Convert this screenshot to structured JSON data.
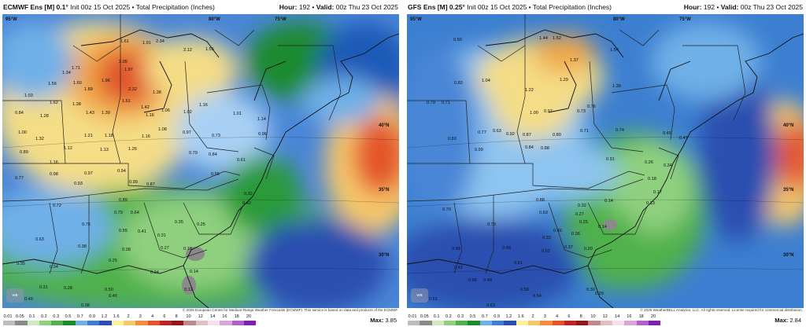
{
  "left": {
    "title_bold": "ECMWF Ens [M] 0.1°",
    "title_rest": "Init 00z 15 Oct 2025 • Total Precipitation (Inches)",
    "hour_label": "Hour:",
    "hour": "192",
    "valid_label": "Valid:",
    "valid": "00z Thu 23 Oct 2025",
    "credit": "© 2025 European Centre for Medium-Range Weather Forecasts (ECMWF). This service is based on data and products of the ECMWF.",
    "max_label": "Max:",
    "max_value": "3.85",
    "lat_labels": {
      "top_left": "95°W",
      "top_mid": "80°W",
      "top_right": "75°W",
      "r40": "40°N",
      "r35": "35°N",
      "r30": "30°N"
    }
  },
  "right": {
    "title_bold": "GFS Ens [M] 0.25°",
    "title_rest": "Init 00z 15 Oct 2025 • Total Precipitation (Inches)",
    "hour_label": "Hour:",
    "hour": "192",
    "valid_label": "Valid:",
    "valid": "00z Thu 23 Oct 2025",
    "credit": "© 2025 WeatherBELL Analytics, LLC. All rights reserved. License required for commercial distribution.",
    "max_label": "Max:",
    "max_value": "2.84",
    "lat_labels": {
      "top_left": "95°W",
      "top_mid": "80°W",
      "top_right": "75°W",
      "r40": "40°N",
      "r35": "35°N",
      "r30": "30°N"
    }
  },
  "legend": {
    "ticks": [
      "0.01",
      "0.05",
      "0.1",
      "0.2",
      "0.3",
      "0.5",
      "0.7",
      "0.9",
      "1.2",
      "1.6",
      "2",
      "3",
      "4",
      "6",
      "8",
      "10",
      "12",
      "14",
      "16",
      "18",
      "20"
    ],
    "colors": [
      "#bdbdbd",
      "#8a8a8a",
      "#cfe9c2",
      "#8fd07f",
      "#4fb14c",
      "#1e8a2e",
      "#6fb0e8",
      "#3c7fd0",
      "#2a4fb0",
      "#fdf0a0",
      "#f6c86a",
      "#f0903c",
      "#e4542a",
      "#c02323",
      "#8c1a1a",
      "#c18a8a",
      "#e0c0c0",
      "#f3e2ea",
      "#d9a6d9",
      "#b060c6",
      "#8020b0"
    ]
  },
  "left_values": [
    [
      "1.61",
      "150",
      "36"
    ],
    [
      "1.91",
      "178",
      "38"
    ],
    [
      "2.34",
      "195",
      "36"
    ],
    [
      "2.12",
      "230",
      "47"
    ],
    [
      "1.55",
      "258",
      "46"
    ],
    [
      "1.71",
      "88",
      "70"
    ],
    [
      "2.05",
      "148",
      "62"
    ],
    [
      "1.97",
      "155",
      "72"
    ],
    [
      "1.34",
      "76",
      "76"
    ],
    [
      "1.60",
      "90",
      "89"
    ],
    [
      "1.56",
      "58",
      "90"
    ],
    [
      "1.89",
      "104",
      "97"
    ],
    [
      "1.96",
      "126",
      "86"
    ],
    [
      "2.32",
      "160",
      "97"
    ],
    [
      "1.38",
      "191",
      "101"
    ],
    [
      "1.03",
      "28",
      "105"
    ],
    [
      "1.62",
      "60",
      "114"
    ],
    [
      "1.38",
      "89",
      "116"
    ],
    [
      "1.43",
      "106",
      "127"
    ],
    [
      "1.39",
      "126",
      "127"
    ],
    [
      "1.61",
      "152",
      "112"
    ],
    [
      "1.42",
      "176",
      "120"
    ],
    [
      "1.06",
      "202",
      "124"
    ],
    [
      "1.02",
      "230",
      "126"
    ],
    [
      "1.16",
      "250",
      "117"
    ],
    [
      "0.84",
      "16",
      "127"
    ],
    [
      "1.28",
      "48",
      "131"
    ],
    [
      "1.16",
      "182",
      "130"
    ],
    [
      "1.01",
      "293",
      "128"
    ],
    [
      "1.14",
      "324",
      "135"
    ],
    [
      "1.00",
      "20",
      "152"
    ],
    [
      "1.32",
      "42",
      "160"
    ],
    [
      "1.21",
      "104",
      "156"
    ],
    [
      "1.18",
      "130",
      "156"
    ],
    [
      "1.16",
      "177",
      "157"
    ],
    [
      "1.08",
      "198",
      "148"
    ],
    [
      "0.97",
      "229",
      "152"
    ],
    [
      "0.73",
      "266",
      "156"
    ],
    [
      "0.96",
      "325",
      "154"
    ],
    [
      "1.12",
      "78",
      "172"
    ],
    [
      "1.13",
      "124",
      "174"
    ],
    [
      "1.26",
      "160",
      "173"
    ],
    [
      "0.89",
      "22",
      "177"
    ],
    [
      "1.16",
      "60",
      "190"
    ],
    [
      "0.98",
      "60",
      "205"
    ],
    [
      "0.97",
      "104",
      "204"
    ],
    [
      "0.94",
      "146",
      "201"
    ],
    [
      "0.79",
      "237",
      "178"
    ],
    [
      "0.84",
      "262",
      "180"
    ],
    [
      "0.61",
      "298",
      "187"
    ],
    [
      "0.77",
      "16",
      "210"
    ],
    [
      "0.93",
      "91",
      "217"
    ],
    [
      "0.99",
      "161",
      "215"
    ],
    [
      "0.87",
      "183",
      "218"
    ],
    [
      "0.55",
      "265",
      "205"
    ],
    [
      "0.72",
      "64",
      "245"
    ],
    [
      "0.89",
      "148",
      "238"
    ],
    [
      "0.79",
      "142",
      "254"
    ],
    [
      "0.64",
      "163",
      "254"
    ],
    [
      "0.32",
      "307",
      "230"
    ],
    [
      "0.42",
      "305",
      "242"
    ],
    [
      "0.76",
      "101",
      "269"
    ],
    [
      "0.55",
      "148",
      "277"
    ],
    [
      "0.41",
      "172",
      "278"
    ],
    [
      "0.35",
      "219",
      "266"
    ],
    [
      "0.25",
      "247",
      "269"
    ],
    [
      "0.63",
      "42",
      "288"
    ],
    [
      "0.38",
      "96",
      "297"
    ],
    [
      "0.38",
      "152",
      "301"
    ],
    [
      "0.31",
      "197",
      "283"
    ],
    [
      "0.27",
      "201",
      "299"
    ],
    [
      "0.18",
      "230",
      "300"
    ],
    [
      "0.35",
      "18",
      "319"
    ],
    [
      "0.34",
      "60",
      "323"
    ],
    [
      "0.25",
      "135",
      "315"
    ],
    [
      "0.24",
      "188",
      "330"
    ],
    [
      "0.14",
      "238",
      "329"
    ],
    [
      "0.31",
      "47",
      "349"
    ],
    [
      "0.28",
      "78",
      "350"
    ],
    [
      "0.50",
      "130",
      "352"
    ],
    [
      "0.40",
      "135",
      "360"
    ],
    [
      "0.12",
      "231",
      "352"
    ],
    [
      "0.49",
      "28",
      "364"
    ],
    [
      "0.38",
      "100",
      "372"
    ],
    [
      "0.04",
      "235",
      "382"
    ],
    [
      "0.09",
      "264",
      "384"
    ]
  ],
  "right_values": [
    [
      "1.44",
      "168",
      "32"
    ],
    [
      "1.52",
      "185",
      "32"
    ],
    [
      "0.50",
      "59",
      "34"
    ],
    [
      "1.54",
      "258",
      "47"
    ],
    [
      "1.37",
      "207",
      "60"
    ],
    [
      "1.39",
      "261",
      "93"
    ],
    [
      "1.22",
      "150",
      "98"
    ],
    [
      "1.29",
      "194",
      "85"
    ],
    [
      "1.04",
      "95",
      "86"
    ],
    [
      "0.82",
      "60",
      "89"
    ],
    [
      "0.79",
      "25",
      "114"
    ],
    [
      "0.71",
      "44",
      "114"
    ],
    [
      "1.00",
      "156",
      "127"
    ],
    [
      "0.97",
      "174",
      "125"
    ],
    [
      "0.76",
      "229",
      "119"
    ],
    [
      "0.73",
      "216",
      "125"
    ],
    [
      "0.74",
      "265",
      "149"
    ],
    [
      "0.71",
      "220",
      "150"
    ],
    [
      "0.92",
      "126",
      "154"
    ],
    [
      "0.87",
      "147",
      "155"
    ],
    [
      "0.77",
      "90",
      "152"
    ],
    [
      "0.80",
      "185",
      "155"
    ],
    [
      "0.63",
      "109",
      "150"
    ],
    [
      "0.83",
      "52",
      "160"
    ],
    [
      "0.99",
      "86",
      "174"
    ],
    [
      "0.84",
      "150",
      "171"
    ],
    [
      "0.88",
      "170",
      "172"
    ],
    [
      "0.91",
      "253",
      "186"
    ],
    [
      "0.45",
      "325",
      "153"
    ],
    [
      "0.47",
      "346",
      "159"
    ],
    [
      "0.26",
      "302",
      "190"
    ],
    [
      "0.18",
      "306",
      "211"
    ],
    [
      "0.34",
      "326",
      "194"
    ],
    [
      "0.17",
      "313",
      "228"
    ],
    [
      "0.13",
      "304",
      "242"
    ],
    [
      "0.14",
      "251",
      "239"
    ],
    [
      "0.14",
      "243",
      "272"
    ],
    [
      "0.25",
      "219",
      "266"
    ],
    [
      "0.27",
      "214",
      "256"
    ],
    [
      "0.32",
      "217",
      "245"
    ],
    [
      "0.88",
      "164",
      "238"
    ],
    [
      "0.63",
      "168",
      "254"
    ],
    [
      "0.40",
      "186",
      "277"
    ],
    [
      "0.36",
      "209",
      "281"
    ],
    [
      "0.33",
      "172",
      "286"
    ],
    [
      "0.37",
      "200",
      "298"
    ],
    [
      "0.20",
      "225",
      "300"
    ],
    [
      "0.70",
      "45",
      "250"
    ],
    [
      "0.79",
      "102",
      "269"
    ],
    [
      "0.48",
      "57",
      "300"
    ],
    [
      "0.48",
      "121",
      "299"
    ],
    [
      "0.52",
      "171",
      "303"
    ],
    [
      "0.51",
      "136",
      "318"
    ],
    [
      "0.42",
      "60",
      "324"
    ],
    [
      "0.58",
      "144",
      "352"
    ],
    [
      "0.64",
      "160",
      "360"
    ],
    [
      "0.30",
      "228",
      "352"
    ],
    [
      "0.29",
      "239",
      "357"
    ],
    [
      "0.48",
      "97",
      "340"
    ],
    [
      "0.56",
      "78",
      "340"
    ],
    [
      "0.51",
      "28",
      "364"
    ],
    [
      "0.63",
      "101",
      "372"
    ],
    [
      "0.67",
      "231",
      "383"
    ],
    [
      "0.62",
      "278",
      "385"
    ],
    [
      "0.52",
      "7",
      "390"
    ]
  ]
}
